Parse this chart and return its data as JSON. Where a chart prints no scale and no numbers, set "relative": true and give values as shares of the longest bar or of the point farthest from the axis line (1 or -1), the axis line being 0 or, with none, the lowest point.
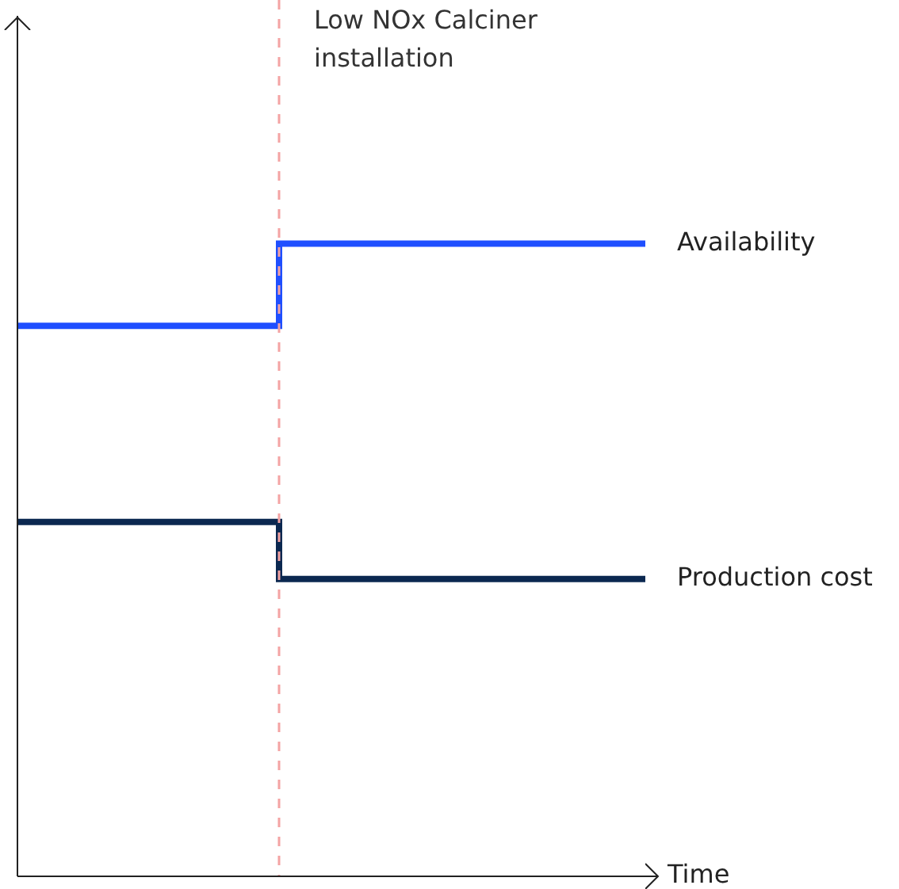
{
  "chart_data": {
    "type": "step",
    "relative": true,
    "xlabel": "Time",
    "legend": false,
    "grid": false,
    "marker": "none",
    "line_style": "solid",
    "categories": [
      null,
      null,
      null,
      null,
      null,
      null,
      null,
      null,
      null,
      null,
      null,
      null,
      null
    ],
    "series": [
      {
        "name": "Availability",
        "color": "#1f4fff",
        "values": [
          0.87,
          0.87,
          0.87,
          0.87,
          0.87,
          1,
          1,
          1,
          1,
          1,
          1,
          1,
          1
        ]
      },
      {
        "name": "Production cost",
        "color": "#0b2850",
        "values": [
          0.56,
          0.56,
          0.56,
          0.56,
          0.56,
          0.47,
          0.47,
          0.47,
          0.47,
          0.47,
          0.47,
          0.47,
          0.47
        ]
      }
    ],
    "annotations": [
      "Low NOx Calciner installation"
    ]
  }
}
